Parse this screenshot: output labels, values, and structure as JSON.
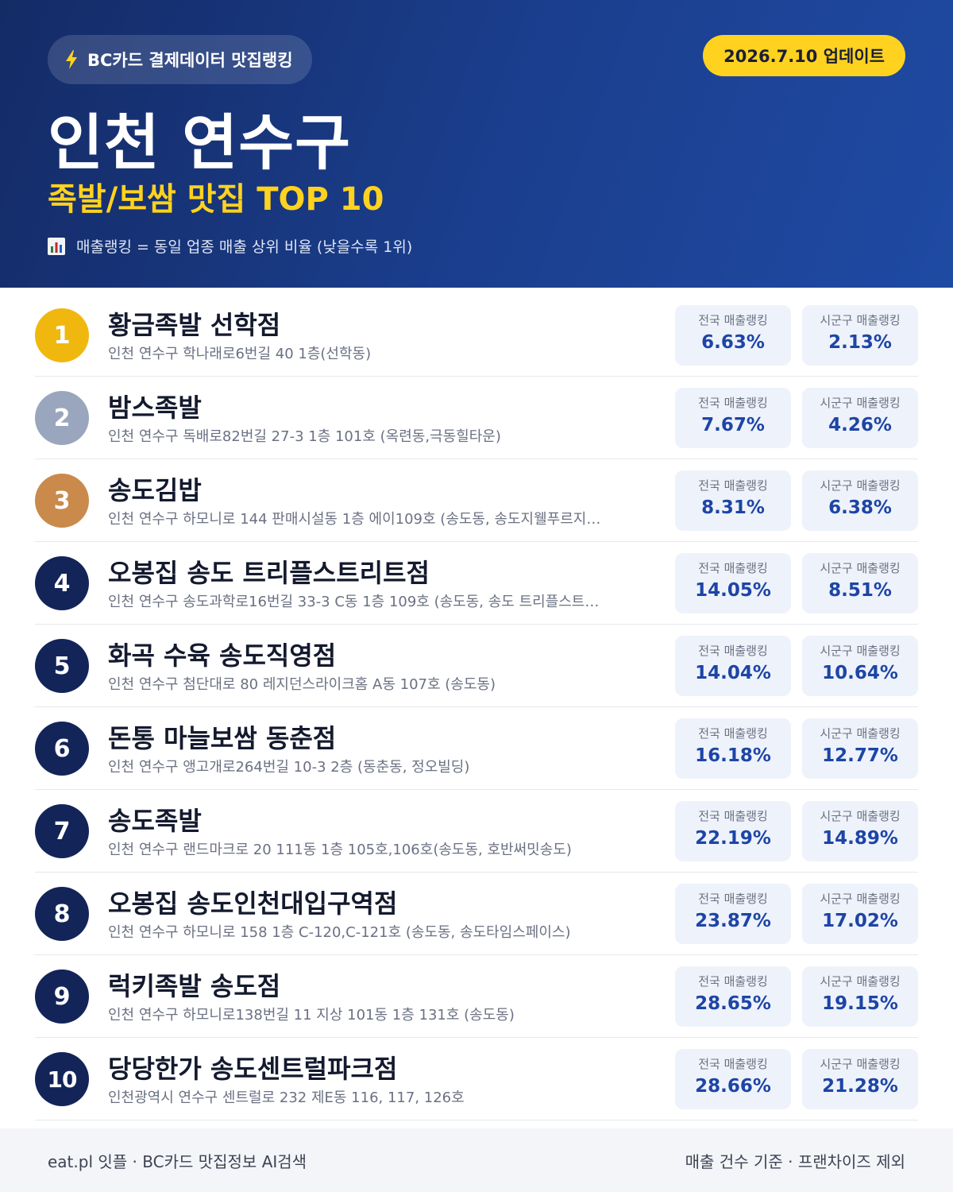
{
  "header": {
    "brand_icon": "lightning-bolt-icon",
    "brand": "BC카드 결제데이터 맛집랭킹",
    "update": "2026.7.10 업데이트",
    "region": "인천 연수구",
    "subtitle": "족발/보쌈 맛집 TOP 10",
    "note_icon": "bar-chart-icon",
    "note": "매출랭킹 = 동일 업종 매출 상위 비율 (낮을수록 1위)"
  },
  "colors": {
    "header_start": "#142b66",
    "header_end": "#1f4aa3",
    "accent_yellow": "#ffd21f",
    "gold": "#f0b80f",
    "silver": "#9aa6bd",
    "bronze": "#c98a4b",
    "navy": "#132459",
    "value_blue": "#1d45a6"
  },
  "labels": {
    "national": "전국 매출랭킹",
    "district": "시군구 매출랭킹"
  },
  "restaurants": [
    {
      "rank": "1",
      "name": "황금족발 선학점",
      "address": "인천 연수구 학나래로6번길 40 1층(선학동)",
      "national": "6.63%",
      "district": "2.13%"
    },
    {
      "rank": "2",
      "name": "밤스족발",
      "address": "인천 연수구 독배로82번길 27-3 1층 101호 (옥련동,극동힐타운)",
      "national": "7.67%",
      "district": "4.26%"
    },
    {
      "rank": "3",
      "name": "송도김밥",
      "address": "인천 연수구 하모니로 144 판매시설동 1층 에이109호 (송도동, 송도지웰푸르지…",
      "national": "8.31%",
      "district": "6.38%"
    },
    {
      "rank": "4",
      "name": "오봉집 송도 트리플스트리트점",
      "address": "인천 연수구 송도과학로16번길 33-3 C동 1층 109호 (송도동, 송도 트리플스트…",
      "national": "14.05%",
      "district": "8.51%"
    },
    {
      "rank": "5",
      "name": "화곡 수육 송도직영점",
      "address": "인천 연수구 첨단대로 80 레지던스라이크홈 A동 107호 (송도동)",
      "national": "14.04%",
      "district": "10.64%"
    },
    {
      "rank": "6",
      "name": "돈통 마늘보쌈 동춘점",
      "address": "인천 연수구 앵고개로264번길 10-3 2층 (동춘동, 정오빌딩)",
      "national": "16.18%",
      "district": "12.77%"
    },
    {
      "rank": "7",
      "name": "송도족발",
      "address": "인천 연수구 랜드마크로 20 111동 1층 105호,106호(송도동, 호반써밋송도)",
      "national": "22.19%",
      "district": "14.89%"
    },
    {
      "rank": "8",
      "name": "오봉집 송도인천대입구역점",
      "address": "인천 연수구 하모니로 158 1층 C-120,C-121호 (송도동, 송도타임스페이스)",
      "national": "23.87%",
      "district": "17.02%"
    },
    {
      "rank": "9",
      "name": "럭키족발 송도점",
      "address": "인천 연수구 하모니로138번길 11 지상 101동 1층 131호 (송도동)",
      "national": "28.65%",
      "district": "19.15%"
    },
    {
      "rank": "10",
      "name": "당당한가 송도센트럴파크점",
      "address": "인천광역시 연수구 센트럴로 232 제E동 116, 117, 126호",
      "national": "28.66%",
      "district": "21.28%"
    }
  ],
  "footer": {
    "left": "eat.pl 잇플 · BC카드 맛집정보 AI검색",
    "right": "매출 건수 기준 · 프랜차이즈 제외"
  }
}
